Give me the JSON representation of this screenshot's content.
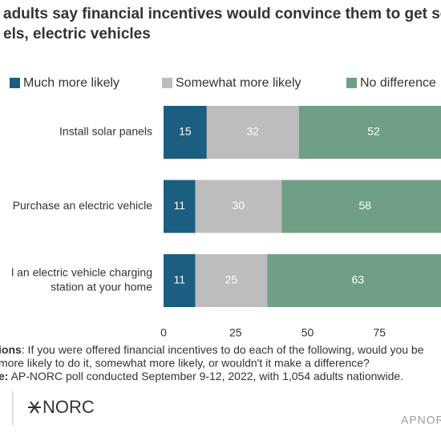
{
  "chart_data": {
    "type": "stacked_bar_horizontal",
    "title_lines": [
      "adults say financial incentives would convince them to get sola",
      "els, electric vehicles"
    ],
    "categories": [
      [
        "Install solar panels"
      ],
      [
        "Purchase an electric vehicle"
      ],
      [
        "l an electric vehicle charging",
        "station at your home"
      ]
    ],
    "series": [
      {
        "name": "Much more likely",
        "color": "#1b5e7f",
        "values": [
          15,
          11,
          11
        ]
      },
      {
        "name": "Somewhat more likely",
        "color": "#bdbdbd",
        "values": [
          32,
          30,
          25
        ]
      },
      {
        "name": "No difference",
        "color": "#6fa085",
        "values": [
          52,
          58,
          63
        ]
      }
    ],
    "xlim": [
      0,
      100
    ],
    "xticks": [
      0,
      25,
      50,
      75
    ],
    "notes": [
      {
        "bold": "ions",
        "text": ": If you were offered financial incentives to do each of the following, would you be"
      },
      {
        "bold": "",
        "text": "more likely to do it, somewhat more likely, or wouldn't it make a difference?"
      },
      {
        "bold": "e:",
        "text": " AP-NORC poll conducted September 9-12, 2022, with 1,054 adults nationwide."
      }
    ],
    "logo": "NORC",
    "footer": "APNORC"
  }
}
